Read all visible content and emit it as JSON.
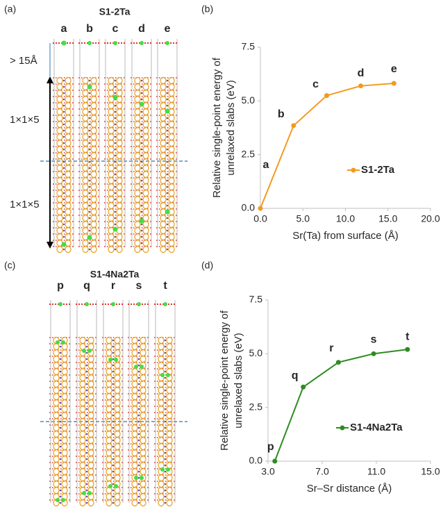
{
  "structures": [
    {
      "panel_label": "(a)",
      "title": "S1-2Ta",
      "column_labels": [
        "a",
        "b",
        "c",
        "d",
        "e"
      ],
      "label_color": "#c8781e",
      "annotations": [
        "> 15Å",
        "1×1×5",
        "1×1×5"
      ]
    },
    {
      "panel_label": "(c)",
      "title": "S1-4Na2Ta",
      "column_labels": [
        "p",
        "q",
        "r",
        "s",
        "t"
      ],
      "label_color": "#2e8b22"
    }
  ],
  "chart_data": [
    {
      "type": "line",
      "panel_label": "(b)",
      "xlabel": "Sr(Ta) from surface (Å)",
      "ylabel": [
        "Relative single-point energy of",
        "unrelaxed slabs (eV)"
      ],
      "x": [
        0,
        3.9,
        7.8,
        11.8,
        15.7
      ],
      "series": [
        {
          "name": "S1-2Ta",
          "color": "#f39a1e",
          "label_color": "#c8781e",
          "values": [
            0,
            3.85,
            5.25,
            5.7,
            5.82
          ],
          "point_labels": [
            "a",
            "b",
            "c",
            "d",
            "e"
          ]
        }
      ],
      "xlim": [
        0,
        20
      ],
      "xticks": [
        {
          "value": 0,
          "label": "0.0"
        },
        {
          "value": 5,
          "label": "5.0"
        },
        {
          "value": 10,
          "label": "10.0"
        },
        {
          "value": 15,
          "label": "15.0"
        },
        {
          "value": 20,
          "label": "20.0"
        }
      ],
      "ylim": [
        0,
        7.5
      ],
      "yticks": [
        {
          "value": 0,
          "label": "0.0"
        },
        2.5,
        {
          "value": 5,
          "label": "5.0"
        },
        7.5
      ]
    },
    {
      "type": "line",
      "panel_label": "(d)",
      "xlabel": "Sr–Sr distance (Å)",
      "ylabel": [
        "Relative single-point energy of",
        "unrelaxed slabs (eV)"
      ],
      "x": [
        3.5,
        5.6,
        8.2,
        10.8,
        13.3
      ],
      "series": [
        {
          "name": "S1-4Na2Ta",
          "color": "#2e8b22",
          "label_color": "#2e8b22",
          "values": [
            0,
            3.45,
            4.6,
            5.0,
            5.2
          ],
          "point_labels": [
            "p",
            "q",
            "r",
            "s",
            "t"
          ]
        }
      ],
      "xlim": [
        3,
        15
      ],
      "xticks": [
        {
          "value": 3,
          "label": "3.0"
        },
        {
          "value": 7,
          "label": "7.0"
        },
        {
          "value": 11,
          "label": "11.0"
        },
        {
          "value": 15,
          "label": "15.0"
        }
      ],
      "ylim": [
        0,
        7.5
      ],
      "yticks": [
        {
          "value": 0,
          "label": "0.0"
        },
        2.5,
        {
          "value": 5,
          "label": "5.0"
        },
        7.5
      ]
    }
  ]
}
